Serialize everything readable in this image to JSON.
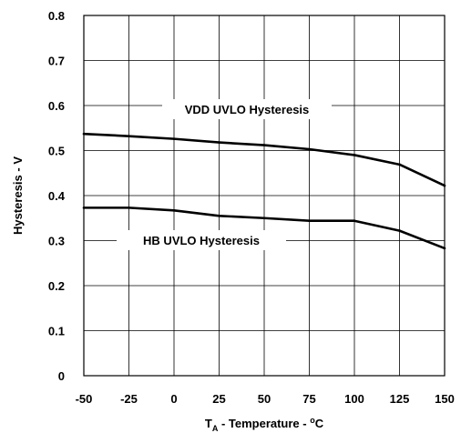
{
  "chart_data": {
    "type": "line",
    "title": "",
    "xlabel": {
      "main": "T",
      "subscript": "A",
      "rest": " - Temperature - ",
      "degree": "o",
      "unit": "C"
    },
    "ylabel": "Hysteresis - V",
    "x": [
      -50,
      -25,
      0,
      25,
      50,
      75,
      100,
      125,
      150
    ],
    "xlim": [
      -50,
      150
    ],
    "ylim": [
      0,
      0.8
    ],
    "x_ticks": [
      "-50",
      "-25",
      "0",
      "25",
      "50",
      "75",
      "100",
      "125",
      "150"
    ],
    "y_ticks": [
      "0",
      "0.1",
      "0.2",
      "0.3",
      "0.4",
      "0.5",
      "0.6",
      "0.7",
      "0.8"
    ],
    "grid": true,
    "series": [
      {
        "name": "VDD UVLO Hysteresis",
        "values": [
          0.537,
          0.532,
          0.526,
          0.518,
          0.512,
          0.503,
          0.49,
          0.469,
          0.422
        ]
      },
      {
        "name": "HB UVLO Hysteresis",
        "values": [
          0.373,
          0.373,
          0.367,
          0.355,
          0.35,
          0.344,
          0.344,
          0.322,
          0.283
        ]
      }
    ]
  }
}
